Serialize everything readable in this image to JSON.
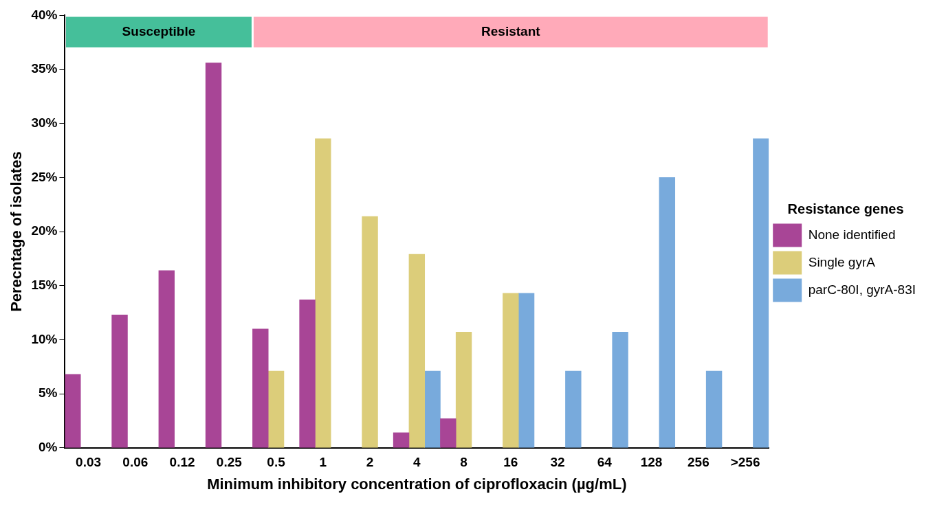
{
  "chart_data": {
    "type": "bar",
    "xlabel": "Minimum inhibitory concentration of ciprofloxacin (µg/mL)",
    "ylabel": "Perecntage of isolates",
    "legend_title": "Resistance genes",
    "legend": "right",
    "grid": false,
    "categories": [
      "0.03",
      "0.06",
      "0.12",
      "0.25",
      "0.5",
      "1",
      "2",
      "4",
      "8",
      "16",
      "32",
      "64",
      "128",
      "256",
      ">256"
    ],
    "series": [
      {
        "name": "None identified",
        "color": "#a84596",
        "values": [
          6.8,
          12.3,
          16.4,
          35.6,
          11.0,
          13.7,
          null,
          1.4,
          2.7,
          null,
          null,
          null,
          null,
          null,
          null
        ]
      },
      {
        "name": "Single gyrA",
        "color": "#dccd7a",
        "values": [
          null,
          null,
          null,
          null,
          7.1,
          28.6,
          21.4,
          17.9,
          10.7,
          14.3,
          null,
          null,
          null,
          null,
          null
        ]
      },
      {
        "name": "parC-80I, gyrA-83I",
        "color": "#78aadc",
        "values": [
          null,
          null,
          null,
          null,
          null,
          null,
          null,
          7.1,
          null,
          14.3,
          7.1,
          10.7,
          25.0,
          7.1,
          28.6
        ]
      }
    ],
    "ylim": [
      0,
      40
    ],
    "yticks": [
      {
        "value": 0,
        "label": "0%"
      },
      {
        "value": 5,
        "label": "5%"
      },
      {
        "value": 10,
        "label": "10%"
      },
      {
        "value": 15,
        "label": "15%"
      },
      {
        "value": 20,
        "label": "20%"
      },
      {
        "value": 25,
        "label": "25%"
      },
      {
        "value": 30,
        "label": "30%"
      },
      {
        "value": 35,
        "label": "35%"
      },
      {
        "value": 40,
        "label": "40%"
      }
    ],
    "bands": [
      {
        "axis": "x",
        "from": "0.03",
        "to": "0.25",
        "label": "Susceptible",
        "color": "#45bf9a"
      },
      {
        "axis": "x",
        "from": "0.5",
        "to": ">256",
        "label": "Resistant",
        "color": "#ffaab9"
      }
    ]
  }
}
